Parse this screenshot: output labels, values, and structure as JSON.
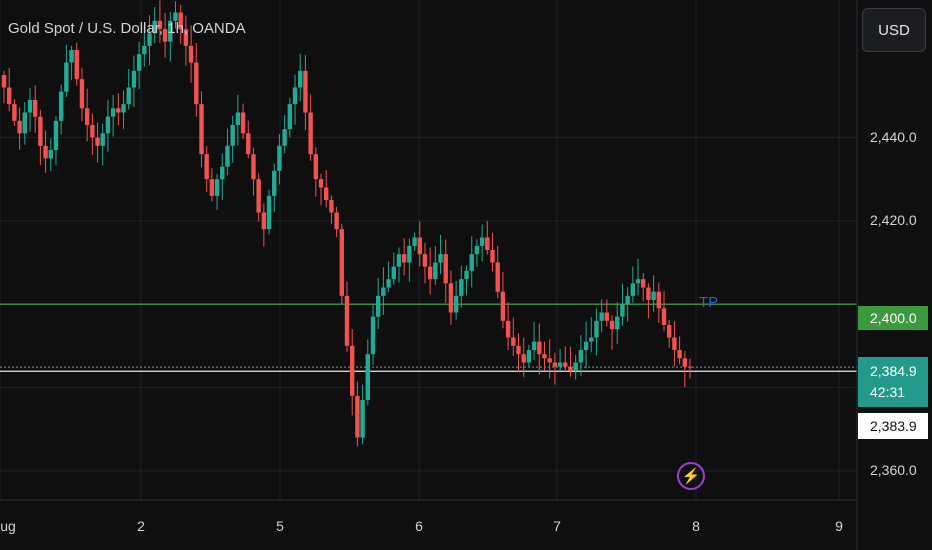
{
  "header": {
    "title": "Gold Spot / U.S. Dollar, 1h, OANDA",
    "currency_button": "USD"
  },
  "annotations": {
    "tp_label": "TP",
    "lightning_icon": "lightning-icon"
  },
  "price_tags": {
    "tp_level": "2,400.0",
    "last_price": "2,384.9",
    "countdown": "42:31",
    "crosshair_price": "2,383.9"
  },
  "colors": {
    "up": "#22ab94",
    "down": "#f05350",
    "tp_line": "#4caf50",
    "tp_text": "#2e5fd6",
    "marker": "#9b3fd6"
  },
  "chart_data": {
    "type": "candlestick",
    "title": "Gold Spot / U.S. Dollar, 1h, OANDA",
    "ylim": [
      2353,
      2473
    ],
    "yticks": [
      {
        "value": 2440,
        "label": "2,440.0"
      },
      {
        "value": 2420,
        "label": "2,420.0"
      },
      {
        "value": 2360,
        "label": "2,360.0"
      }
    ],
    "xticks": [
      {
        "label": "ug",
        "date": "2024-08-01"
      },
      {
        "label": "2",
        "date": "2024-08-02"
      },
      {
        "label": "5",
        "date": "2024-08-05"
      },
      {
        "label": "6",
        "date": "2024-08-06"
      },
      {
        "label": "7",
        "date": "2024-08-07"
      },
      {
        "label": "8",
        "date": "2024-08-08"
      },
      {
        "label": "9",
        "date": "2024-08-09"
      }
    ],
    "horizontal_lines": [
      {
        "name": "TP",
        "value": 2400.0
      },
      {
        "name": "last",
        "value": 2384.9
      },
      {
        "name": "crosshair",
        "value": 2383.9
      }
    ],
    "candle_closes": [
      2452,
      2448,
      2444,
      2441,
      2446,
      2449,
      2445,
      2438,
      2435,
      2437,
      2444,
      2451,
      2458,
      2461,
      2454,
      2447,
      2443,
      2440,
      2438,
      2441,
      2445,
      2447,
      2446,
      2448,
      2452,
      2456,
      2460,
      2462,
      2465,
      2468,
      2466,
      2463,
      2468,
      2470,
      2466,
      2462,
      2458,
      2448,
      2436,
      2430,
      2426,
      2430,
      2433,
      2438,
      2443,
      2446,
      2441,
      2436,
      2430,
      2422,
      2418,
      2426,
      2432,
      2438,
      2442,
      2448,
      2452,
      2456,
      2446,
      2436,
      2430,
      2428,
      2425,
      2422,
      2418,
      2402,
      2390,
      2378,
      2368,
      2377,
      2388,
      2397,
      2402,
      2404,
      2406,
      2409,
      2412,
      2410,
      2414,
      2416,
      2412,
      2409,
      2406,
      2410,
      2412,
      2405,
      2398,
      2402,
      2406,
      2408,
      2412,
      2414,
      2416,
      2413,
      2410,
      2403,
      2396,
      2392,
      2390,
      2388,
      2386,
      2389,
      2391,
      2388,
      2387,
      2386,
      2385,
      2386,
      2385,
      2384,
      2386,
      2389,
      2391,
      2392,
      2396,
      2398,
      2396,
      2394,
      2397,
      2400,
      2402,
      2405,
      2406,
      2404,
      2401,
      2403,
      2399,
      2395,
      2392,
      2389,
      2387,
      2385,
      2384.9
    ]
  }
}
